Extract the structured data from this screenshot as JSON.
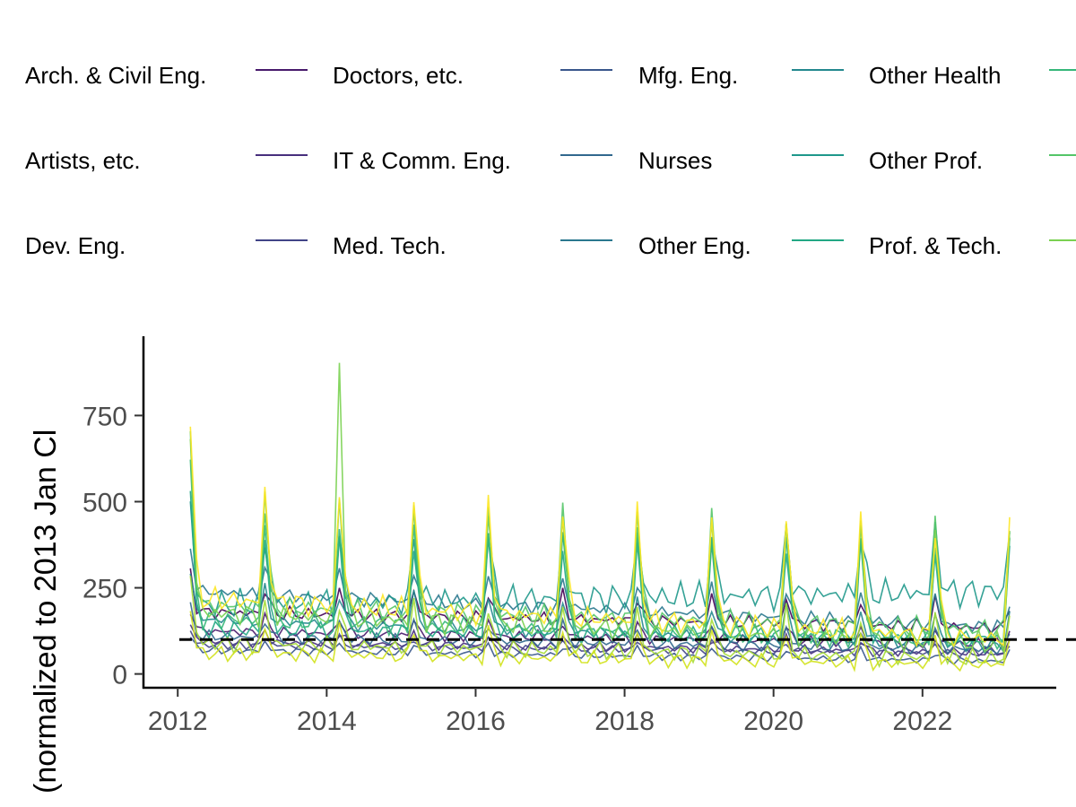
{
  "chart_data": {
    "type": "line",
    "ylabel": "(normalized to 2013 Jan Cl",
    "xlim": [
      2011.6,
      2023.7
    ],
    "ylim": [
      -40,
      980
    ],
    "x_ticks": [
      2012,
      2014,
      2016,
      2018,
      2020,
      2022
    ],
    "y_ticks": [
      0,
      250,
      500,
      750
    ],
    "reference_line": {
      "y": 100,
      "style": "dashed"
    },
    "legend_placement": "top",
    "series": [
      {
        "name": "Arch. & Civil Eng.",
        "color": "#440154",
        "base": 180,
        "trend": -0.35,
        "spike": 70,
        "noise": 14,
        "phase": 1
      },
      {
        "name": "Artists, etc.",
        "color": "#481a6c",
        "base": 125,
        "trend": -0.3,
        "spike": 40,
        "noise": 12,
        "phase": 2
      },
      {
        "name": "Dev. Eng.",
        "color": "#472f7d",
        "base": 95,
        "trend": -0.25,
        "spike": 30,
        "noise": 10,
        "phase": 3
      },
      {
        "name": "Doctors, etc.",
        "color": "#414487",
        "base": 85,
        "trend": -0.2,
        "spike": 25,
        "noise": 8,
        "phase": 4
      },
      {
        "name": "IT & Comm. Eng.",
        "color": "#39568c",
        "base": 70,
        "trend": -0.25,
        "spike": 25,
        "noise": 8,
        "phase": 5
      },
      {
        "name": "Med. Tech.",
        "color": "#31688e",
        "base": 110,
        "trend": -0.3,
        "spike": 50,
        "noise": 12,
        "phase": 6
      },
      {
        "name": "Mfg. Eng.",
        "color": "#2a788e",
        "base": 240,
        "trend": -0.8,
        "spike": 80,
        "noise": 15,
        "phase": 7
      },
      {
        "name": "Nurses",
        "color": "#23888e",
        "base": 160,
        "trend": -0.6,
        "spike": 90,
        "noise": 14,
        "phase": 8
      },
      {
        "name": "Other Eng.",
        "color": "#1f988b",
        "base": 200,
        "trend": 0.3,
        "spike": 180,
        "noise": 30,
        "phase": 9
      },
      {
        "name": "Other Health",
        "color": "#22a884",
        "base": 130,
        "trend": -0.2,
        "spike": 260,
        "noise": 18,
        "phase": 10
      },
      {
        "name": "Other Prof.",
        "color": "#35b779",
        "base": 160,
        "trend": -0.5,
        "spike": 280,
        "noise": 20,
        "phase": 11
      },
      {
        "name": "Prof. & Tech.",
        "color": "#54c568",
        "base": 200,
        "trend": -0.55,
        "spike": 300,
        "noise": 22,
        "phase": 12
      },
      {
        "name": "",
        "color": "#7ad151",
        "base": 180,
        "trend": -0.7,
        "spike": 330,
        "noise": 24,
        "phase": 13
      },
      {
        "name": "",
        "color": "#a5db36",
        "base": 90,
        "trend": -0.35,
        "spike": 120,
        "noise": 18,
        "phase": 14
      },
      {
        "name": "",
        "color": "#d2e21b",
        "base": 60,
        "trend": -0.25,
        "spike": 80,
        "noise": 15,
        "phase": 15
      },
      {
        "name": "",
        "color": "#fde725",
        "base": 220,
        "trend": -0.9,
        "spike": 320,
        "noise": 24,
        "phase": 16
      }
    ]
  }
}
